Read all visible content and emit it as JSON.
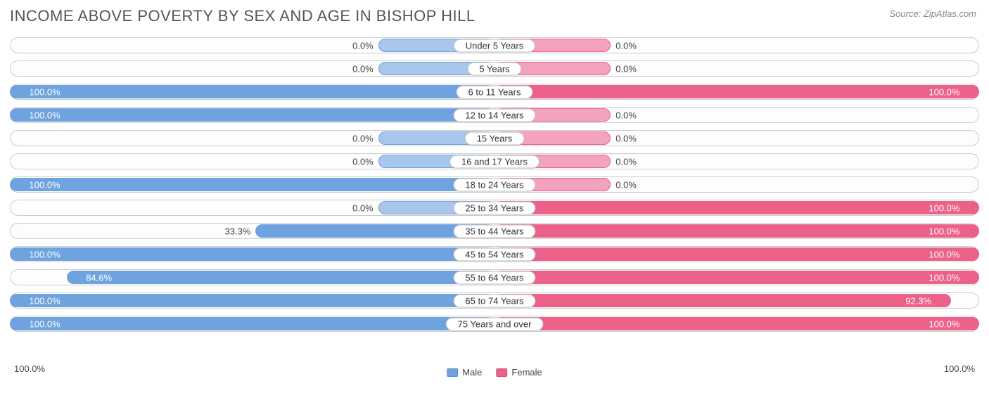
{
  "title": "INCOME ABOVE POVERTY BY SEX AND AGE IN BISHOP HILL",
  "source": "Source: ZipAtlas.com",
  "chart": {
    "type": "diverging-bar",
    "male_color": "#6ea3e0",
    "male_color_light": "#a9c6eb",
    "female_color": "#ec6189",
    "female_color_light": "#f4a3bd",
    "min_bar_pct": 12,
    "track_border": "#cccccc",
    "label_border": "#bbbbbb",
    "text_color": "#444444",
    "title_color": "#555555",
    "background": "#ffffff",
    "axis_left": "100.0%",
    "axis_right": "100.0%",
    "legend": {
      "male": "Male",
      "female": "Female"
    },
    "rows": [
      {
        "label": "Under 5 Years",
        "male": 0.0,
        "female": 0.0,
        "male_txt": "0.0%",
        "female_txt": "0.0%"
      },
      {
        "label": "5 Years",
        "male": 0.0,
        "female": 0.0,
        "male_txt": "0.0%",
        "female_txt": "0.0%"
      },
      {
        "label": "6 to 11 Years",
        "male": 100.0,
        "female": 100.0,
        "male_txt": "100.0%",
        "female_txt": "100.0%"
      },
      {
        "label": "12 to 14 Years",
        "male": 100.0,
        "female": 0.0,
        "male_txt": "100.0%",
        "female_txt": "0.0%"
      },
      {
        "label": "15 Years",
        "male": 0.0,
        "female": 0.0,
        "male_txt": "0.0%",
        "female_txt": "0.0%"
      },
      {
        "label": "16 and 17 Years",
        "male": 0.0,
        "female": 0.0,
        "male_txt": "0.0%",
        "female_txt": "0.0%"
      },
      {
        "label": "18 to 24 Years",
        "male": 100.0,
        "female": 0.0,
        "male_txt": "100.0%",
        "female_txt": "0.0%"
      },
      {
        "label": "25 to 34 Years",
        "male": 0.0,
        "female": 100.0,
        "male_txt": "0.0%",
        "female_txt": "100.0%"
      },
      {
        "label": "35 to 44 Years",
        "male": 33.3,
        "female": 100.0,
        "male_txt": "33.3%",
        "female_txt": "100.0%"
      },
      {
        "label": "45 to 54 Years",
        "male": 100.0,
        "female": 100.0,
        "male_txt": "100.0%",
        "female_txt": "100.0%"
      },
      {
        "label": "55 to 64 Years",
        "male": 84.6,
        "female": 100.0,
        "male_txt": "84.6%",
        "female_txt": "100.0%"
      },
      {
        "label": "65 to 74 Years",
        "male": 100.0,
        "female": 92.3,
        "male_txt": "100.0%",
        "female_txt": "92.3%"
      },
      {
        "label": "75 Years and over",
        "male": 100.0,
        "female": 100.0,
        "male_txt": "100.0%",
        "female_txt": "100.0%"
      }
    ]
  }
}
